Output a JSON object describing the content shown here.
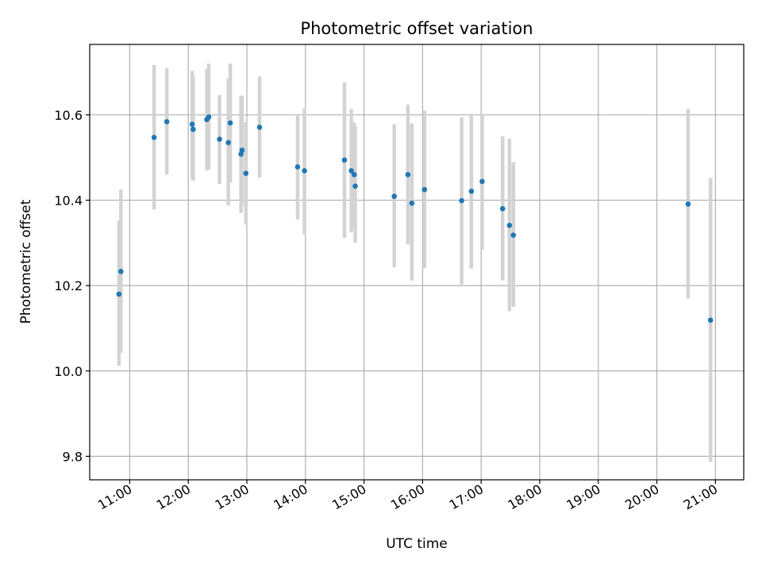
{
  "chart_data": {
    "type": "scatter",
    "title": "Photometric offset variation",
    "xlabel": "UTC time",
    "ylabel": "Photometric offset",
    "x_ticks": [
      "11:00",
      "12:00",
      "13:00",
      "14:00",
      "15:00",
      "16:00",
      "17:00",
      "18:00",
      "19:00",
      "20:00",
      "21:00"
    ],
    "y_ticks": [
      "9.8",
      "10.0",
      "10.2",
      "10.4",
      "10.6"
    ],
    "xlim": [
      "10:19",
      "21:29"
    ],
    "ylim": [
      9.745,
      10.765
    ],
    "grid": true,
    "colors": {
      "marker": "#1f77b4",
      "errorbar": "#d3d3d3"
    },
    "points": [
      {
        "x": "10:49",
        "y": 10.18,
        "lo": 10.012,
        "hi": 10.352
      },
      {
        "x": "10:51",
        "y": 10.233,
        "lo": 10.043,
        "hi": 10.425
      },
      {
        "x": "11:25",
        "y": 10.547,
        "lo": 10.378,
        "hi": 10.717
      },
      {
        "x": "11:38",
        "y": 10.584,
        "lo": 10.46,
        "hi": 10.709
      },
      {
        "x": "12:04",
        "y": 10.578,
        "lo": 10.45,
        "hi": 10.703
      },
      {
        "x": "12:05",
        "y": 10.566,
        "lo": 10.446,
        "hi": 10.69
      },
      {
        "x": "12:19",
        "y": 10.589,
        "lo": 10.47,
        "hi": 10.708
      },
      {
        "x": "12:21",
        "y": 10.595,
        "lo": 10.472,
        "hi": 10.72
      },
      {
        "x": "12:32",
        "y": 10.543,
        "lo": 10.438,
        "hi": 10.646
      },
      {
        "x": "12:41",
        "y": 10.535,
        "lo": 10.388,
        "hi": 10.685
      },
      {
        "x": "12:43",
        "y": 10.581,
        "lo": 10.442,
        "hi": 10.72
      },
      {
        "x": "12:54",
        "y": 10.508,
        "lo": 10.37,
        "hi": 10.645
      },
      {
        "x": "12:55",
        "y": 10.517,
        "lo": 10.388,
        "hi": 10.645
      },
      {
        "x": "12:59",
        "y": 10.463,
        "lo": 10.343,
        "hi": 10.583
      },
      {
        "x": "13:13",
        "y": 10.571,
        "lo": 10.453,
        "hi": 10.69
      },
      {
        "x": "13:52",
        "y": 10.478,
        "lo": 10.355,
        "hi": 10.598
      },
      {
        "x": "13:59",
        "y": 10.469,
        "lo": 10.32,
        "hi": 10.615
      },
      {
        "x": "14:40",
        "y": 10.494,
        "lo": 10.312,
        "hi": 10.676
      },
      {
        "x": "14:47",
        "y": 10.469,
        "lo": 10.325,
        "hi": 10.614
      },
      {
        "x": "14:50",
        "y": 10.46,
        "lo": 10.34,
        "hi": 10.582
      },
      {
        "x": "14:51",
        "y": 10.433,
        "lo": 10.3,
        "hi": 10.572
      },
      {
        "x": "15:31",
        "y": 10.409,
        "lo": 10.243,
        "hi": 10.578
      },
      {
        "x": "15:45",
        "y": 10.46,
        "lo": 10.296,
        "hi": 10.624
      },
      {
        "x": "15:49",
        "y": 10.393,
        "lo": 10.212,
        "hi": 10.58
      },
      {
        "x": "16:02",
        "y": 10.425,
        "lo": 10.241,
        "hi": 10.61
      },
      {
        "x": "16:40",
        "y": 10.399,
        "lo": 10.203,
        "hi": 10.594
      },
      {
        "x": "16:50",
        "y": 10.421,
        "lo": 10.24,
        "hi": 10.602
      },
      {
        "x": "17:01",
        "y": 10.444,
        "lo": 10.284,
        "hi": 10.603
      },
      {
        "x": "17:22",
        "y": 10.38,
        "lo": 10.212,
        "hi": 10.55
      },
      {
        "x": "17:29",
        "y": 10.341,
        "lo": 10.14,
        "hi": 10.544
      },
      {
        "x": "17:33",
        "y": 10.318,
        "lo": 10.15,
        "hi": 10.489
      },
      {
        "x": "20:32",
        "y": 10.391,
        "lo": 10.17,
        "hi": 10.614
      },
      {
        "x": "20:55",
        "y": 10.119,
        "lo": 9.787,
        "hi": 10.452
      }
    ]
  }
}
